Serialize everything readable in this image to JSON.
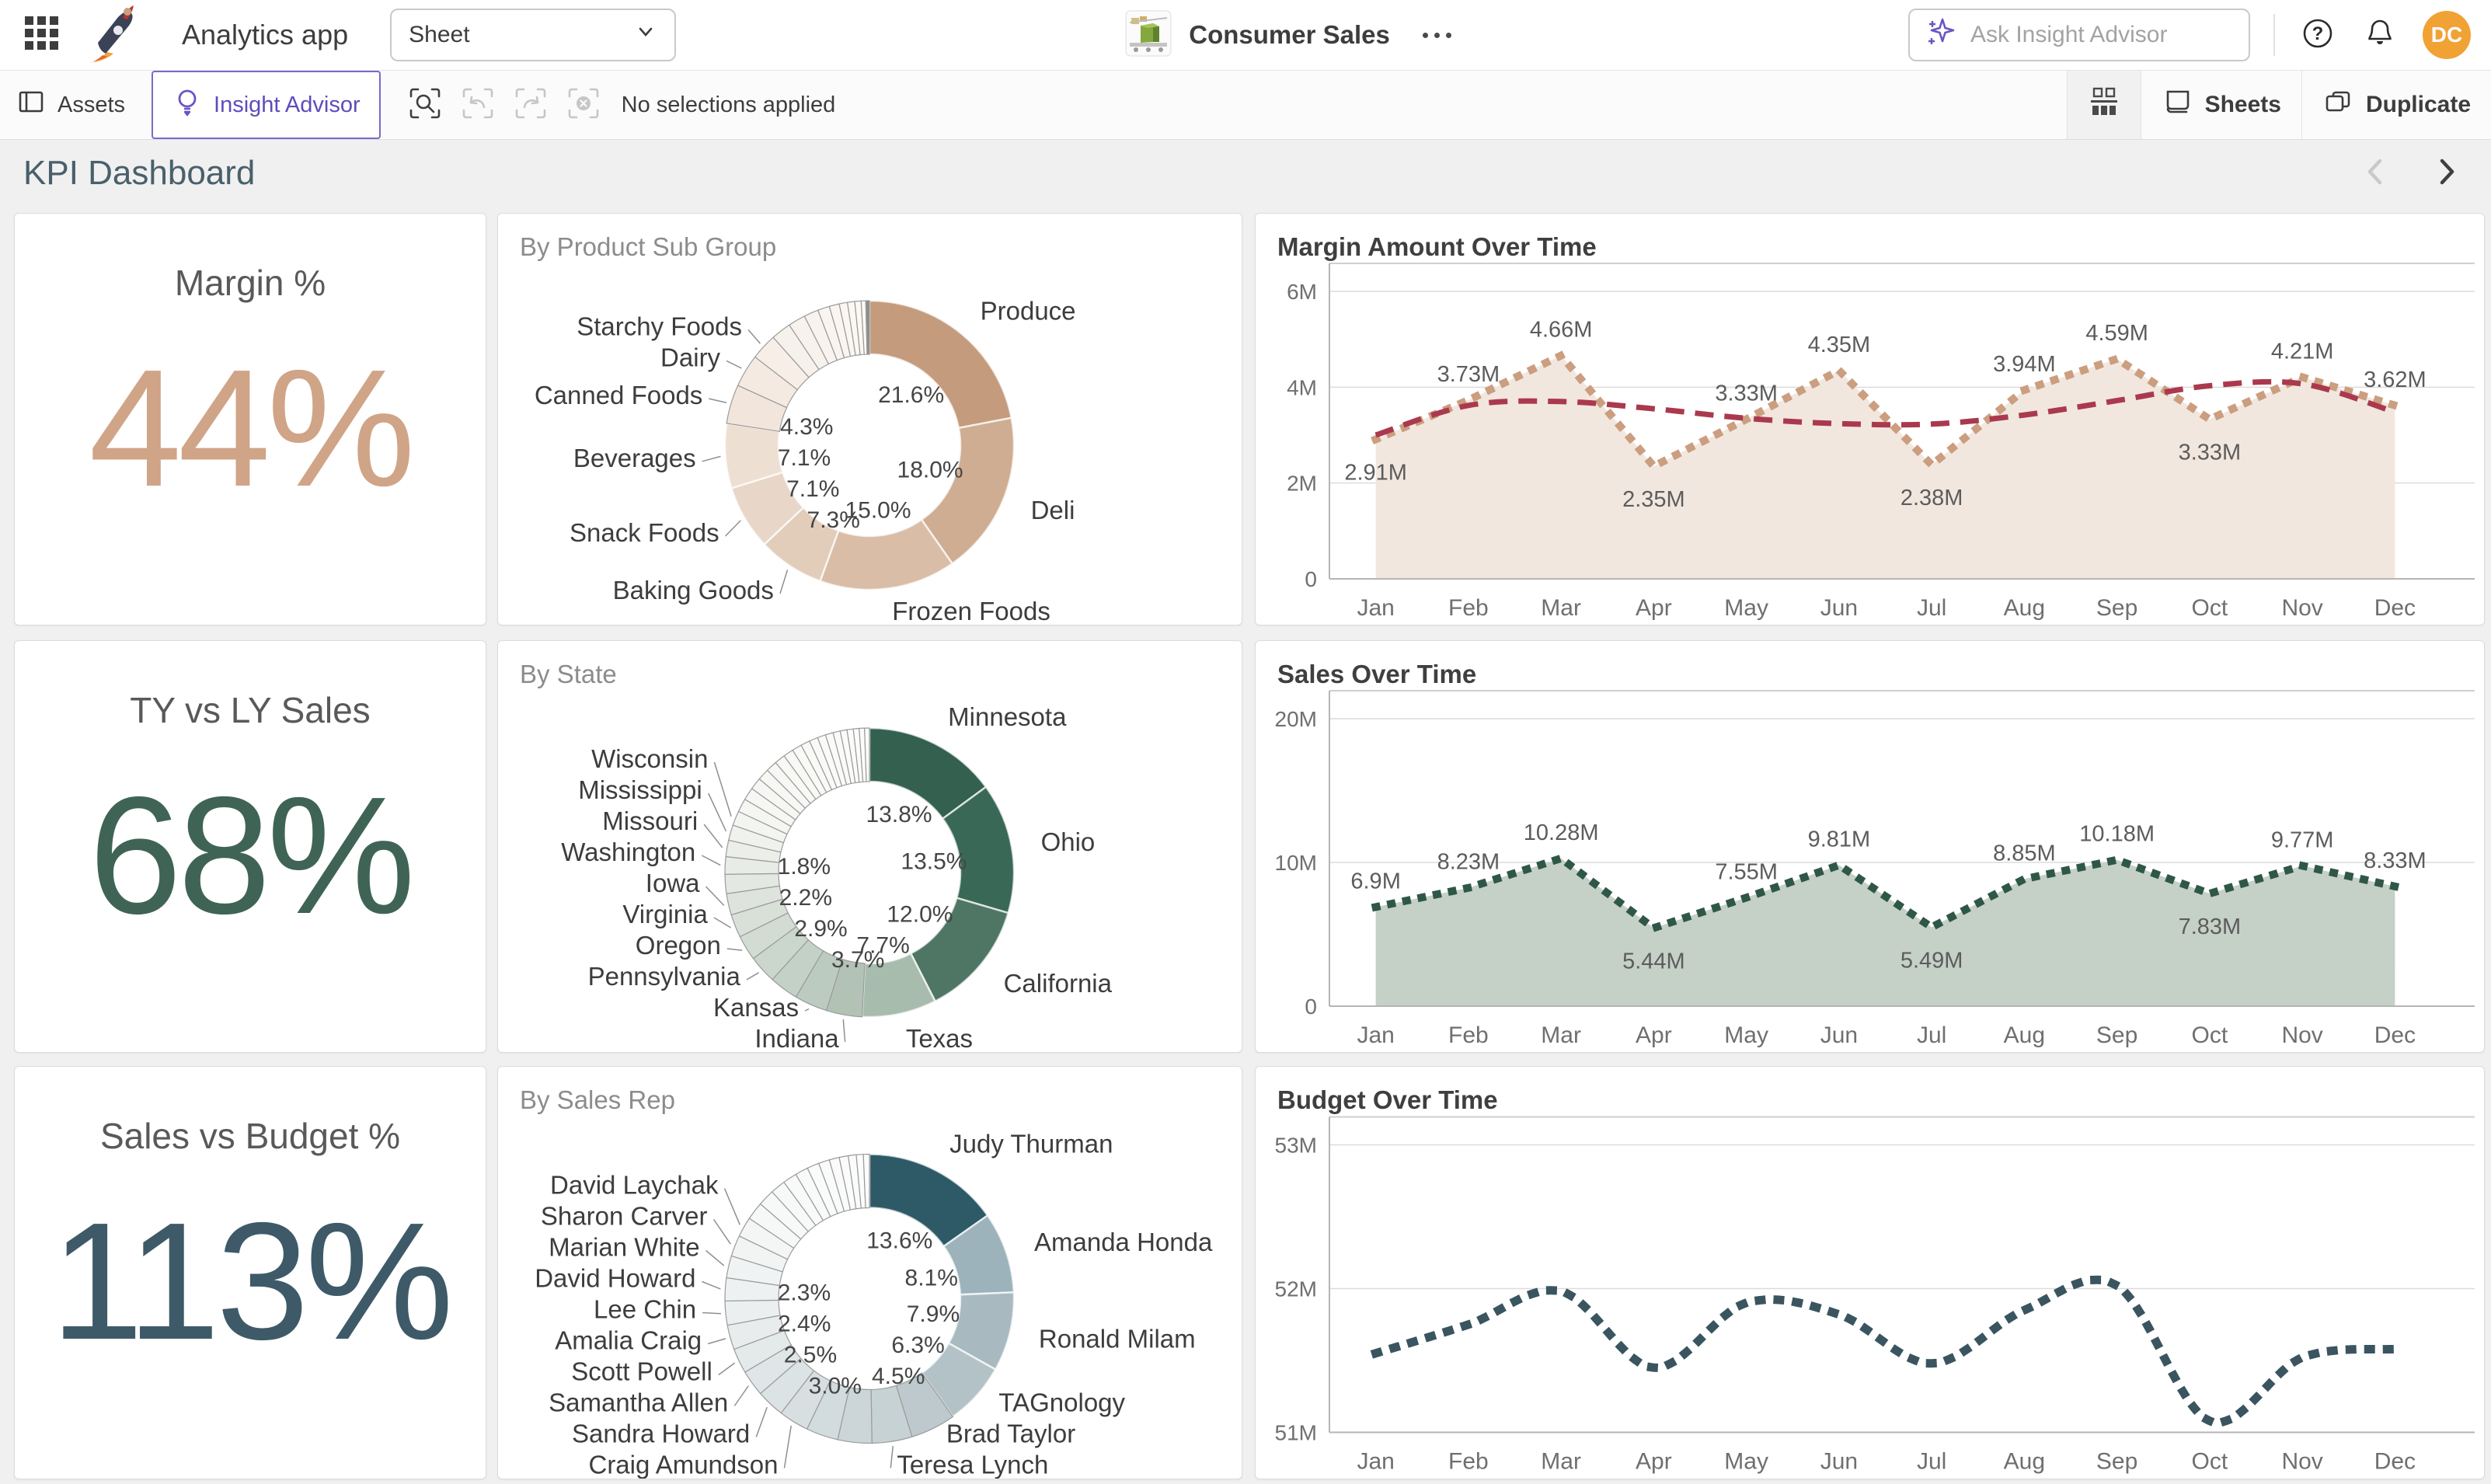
{
  "header": {
    "app_title": "Analytics app",
    "sheet_selector": "Sheet",
    "app_name": "Consumer Sales",
    "search_placeholder": "Ask Insight Advisor",
    "avatar_initials": "DC",
    "avatar_color": "#f0a235",
    "accent_color": "#6a54c5"
  },
  "toolbar": {
    "assets_label": "Assets",
    "insight_advisor_label": "Insight Advisor",
    "status_text": "No selections applied",
    "sheets_label": "Sheets",
    "duplicate_label": "Duplicate"
  },
  "page": {
    "title": "KPI Dashboard"
  },
  "kpis": [
    {
      "title": "Margin %",
      "value": "44%",
      "color": "#d0a487"
    },
    {
      "title": "TY vs LY Sales",
      "value": "68%",
      "color": "#3f6455"
    },
    {
      "title": "Sales vs Budget %",
      "value": "113%",
      "color": "#3e5a68"
    }
  ],
  "chart_data": [
    {
      "type": "pie",
      "title": "By Product Sub Group",
      "slices": [
        {
          "label": "Produce",
          "value": 21.6,
          "pct": "21.6%",
          "color": "#c49b7c"
        },
        {
          "label": "Deli",
          "value": 18.0,
          "pct": "18.0%",
          "color": "#cfad92"
        },
        {
          "label": "Frozen Foods",
          "value": 15.0,
          "pct": "15.0%",
          "color": "#d9bda6"
        },
        {
          "label": "Baking Goods",
          "value": 7.3,
          "pct": "7.3%",
          "color": "#e2ccba"
        },
        {
          "label": "Snack Foods",
          "value": 7.1,
          "pct": "7.1%",
          "color": "#e8d6c8"
        },
        {
          "label": "Beverages",
          "value": 7.1,
          "pct": "7.1%",
          "color": "#eedfd3"
        },
        {
          "label": "Canned Foods",
          "value": 4.3,
          "pct": "4.3%",
          "color": "#f2e6dc"
        },
        {
          "label": "Dairy",
          "value": 3.6,
          "color": "#f4eae1"
        },
        {
          "label": "Starchy Foods",
          "value": 2.9,
          "color": "#f6eee7"
        },
        {
          "label": "",
          "value": 2.2,
          "color": "#f7f1eb"
        },
        {
          "label": "",
          "value": 1.9,
          "color": "#f8f2ed"
        },
        {
          "label": "",
          "value": 1.6,
          "color": "#f8f3ee"
        },
        {
          "label": "",
          "value": 1.3,
          "color": "#f9f4ef"
        },
        {
          "label": "",
          "value": 1.1,
          "color": "#faf5f1"
        },
        {
          "label": "",
          "value": 0.9,
          "color": "#faf6f2"
        },
        {
          "label": "",
          "value": 0.8,
          "color": "#fbf7f3"
        },
        {
          "label": "",
          "value": 0.7,
          "color": "#fbf8f4"
        },
        {
          "label": "",
          "value": 0.5,
          "color": "#fcf9f5"
        },
        {
          "label": "",
          "value": 0.4,
          "color": "#8d8d8d"
        }
      ]
    },
    {
      "type": "area",
      "title": "Margin Amount Over Time",
      "x": [
        "Jan",
        "Feb",
        "Mar",
        "Apr",
        "May",
        "Jun",
        "Jul",
        "Aug",
        "Sep",
        "Oct",
        "Nov",
        "Dec"
      ],
      "values": [
        2.91,
        3.73,
        4.66,
        2.35,
        3.33,
        4.35,
        2.38,
        3.94,
        4.59,
        3.33,
        4.21,
        3.62
      ],
      "point_labels": [
        "2.91M",
        "3.73M",
        "4.66M",
        "2.35M",
        "3.33M",
        "4.35M",
        "2.38M",
        "3.94M",
        "4.59M",
        "3.33M",
        "4.21M",
        "3.62M"
      ],
      "label_side": [
        "b",
        "a",
        "a",
        "b",
        "a",
        "a",
        "b",
        "a",
        "a",
        "b",
        "a",
        "a"
      ],
      "ylim": [
        0,
        6
      ],
      "yticks": [
        {
          "v": 0,
          "label": "0"
        },
        {
          "v": 2,
          "label": "2M"
        },
        {
          "v": 4,
          "label": "4M"
        },
        {
          "v": 6,
          "label": "6M"
        }
      ],
      "line_color": "#cb9e80",
      "fill_color": "#f2e7df",
      "trend": {
        "color": "#ab394d",
        "values": [
          3.0,
          3.62,
          3.7,
          3.55,
          3.35,
          3.24,
          3.23,
          3.42,
          3.72,
          4.03,
          4.07,
          3.48
        ]
      }
    },
    {
      "type": "pie",
      "title": "By State",
      "slices": [
        {
          "label": "Minnesota",
          "value": 13.8,
          "pct": "13.8%",
          "color": "#33604f"
        },
        {
          "label": "Ohio",
          "value": 13.5,
          "pct": "13.5%",
          "color": "#3a6857"
        },
        {
          "label": "California",
          "value": 12.0,
          "pct": "12.0%",
          "color": "#4f7665"
        },
        {
          "label": "Texas",
          "value": 7.7,
          "pct": "7.7%",
          "color": "#a8bcae"
        },
        {
          "label": "Indiana",
          "value": 3.7,
          "pct": "3.7%",
          "color": "#b2c3b6"
        },
        {
          "label": "Kansas",
          "value": 3.4,
          "color": "#bccbbf"
        },
        {
          "label": "",
          "value": 3.0,
          "color": "#c4d1c7"
        },
        {
          "label": "Pennsylvania",
          "value": 2.9,
          "pct": "2.9%",
          "color": "#cbd6cd"
        },
        {
          "label": "Oregon",
          "value": 2.6,
          "color": "#d2dcd3"
        },
        {
          "label": "Virginia",
          "value": 2.4,
          "color": "#d8e0d8"
        },
        {
          "label": "Iowa",
          "value": 2.2,
          "pct": "2.2%",
          "color": "#dee4dd"
        },
        {
          "label": "",
          "value": 2.0,
          "color": "#e3e8e2"
        },
        {
          "label": "Washington",
          "value": 1.8,
          "pct": "1.8%",
          "color": "#e8ece6"
        },
        {
          "label": "Missouri",
          "value": 1.7,
          "color": "#ecefe9"
        },
        {
          "label": "Mississippi",
          "value": 1.6,
          "color": "#f0f2ed"
        },
        {
          "label": "Wisconsin",
          "value": 1.5,
          "color": "#f3f5f0"
        },
        {
          "label": "",
          "value": 1.4,
          "color": "#f5f6f2"
        },
        {
          "label": "",
          "value": 1.3,
          "color": "#f6f7f3"
        },
        {
          "label": "",
          "value": 1.25,
          "color": "#f6f7f4"
        },
        {
          "label": "",
          "value": 1.2,
          "color": "#f7f8f4"
        },
        {
          "label": "",
          "value": 1.15,
          "color": "#f7f8f5"
        },
        {
          "label": "",
          "value": 1.1,
          "color": "#f8f9f5"
        },
        {
          "label": "",
          "value": 1.05,
          "color": "#f8f9f6"
        },
        {
          "label": "",
          "value": 1.0,
          "color": "#f9f9f6"
        },
        {
          "label": "",
          "value": 0.95,
          "color": "#f9faf7"
        },
        {
          "label": "",
          "value": 0.9,
          "color": "#f9faf7"
        },
        {
          "label": "",
          "value": 0.85,
          "color": "#fafaf8"
        },
        {
          "label": "",
          "value": 0.8,
          "color": "#fafbf8"
        },
        {
          "label": "",
          "value": 0.75,
          "color": "#fafbf9"
        },
        {
          "label": "",
          "value": 0.7,
          "color": "#fbfbf9"
        },
        {
          "label": "",
          "value": 0.65,
          "color": "#fbfcfa"
        },
        {
          "label": "",
          "value": 0.6,
          "color": "#fbfcfa"
        },
        {
          "label": "",
          "value": 0.55,
          "color": "#fcfcfb"
        },
        {
          "label": "",
          "value": 0.5,
          "color": "#fcfcfb"
        }
      ]
    },
    {
      "type": "area",
      "title": "Sales Over Time",
      "x": [
        "Jan",
        "Feb",
        "Mar",
        "Apr",
        "May",
        "Jun",
        "Jul",
        "Aug",
        "Sep",
        "Oct",
        "Nov",
        "Dec"
      ],
      "values": [
        6.9,
        8.23,
        10.28,
        5.44,
        7.55,
        9.81,
        5.49,
        8.85,
        10.18,
        7.83,
        9.77,
        8.33
      ],
      "point_labels": [
        "6.9M",
        "8.23M",
        "10.28M",
        "5.44M",
        "7.55M",
        "9.81M",
        "5.49M",
        "8.85M",
        "10.18M",
        "7.83M",
        "9.77M",
        "8.33M"
      ],
      "label_side": [
        "a",
        "a",
        "a",
        "b",
        "a",
        "a",
        "b",
        "a",
        "a",
        "b",
        "a",
        "a"
      ],
      "ylim": [
        0,
        20
      ],
      "yticks": [
        {
          "v": 0,
          "label": "0"
        },
        {
          "v": 10,
          "label": "10M"
        },
        {
          "v": 20,
          "label": "20M"
        }
      ],
      "line_color": "#2f5747",
      "fill_color": "#c5d0c7"
    },
    {
      "type": "pie",
      "title": "By Sales Rep",
      "slices": [
        {
          "label": "Judy Thurman",
          "value": 13.6,
          "pct": "13.6%",
          "color": "#2d5a66"
        },
        {
          "label": "Amanda Honda",
          "value": 8.1,
          "pct": "8.1%",
          "color": "#9db3bb"
        },
        {
          "label": "Ronald Milam",
          "value": 7.9,
          "pct": "7.9%",
          "color": "#a8b9c0"
        },
        {
          "label": "TAGnology",
          "value": 6.3,
          "pct": "6.3%",
          "color": "#b3c2c7"
        },
        {
          "label": "Brad Taylor",
          "value": 4.5,
          "pct": "4.5%",
          "color": "#bdc9cd"
        },
        {
          "label": "Teresa Lynch",
          "value": 4.0,
          "color": "#c7d2d5"
        },
        {
          "label": "",
          "value": 3.4,
          "color": "#ccd6d9"
        },
        {
          "label": "",
          "value": 3.2,
          "color": "#d2dbdd"
        },
        {
          "label": "Craig Amundson",
          "value": 3.0,
          "pct": "3.0%",
          "color": "#d7dfe1"
        },
        {
          "label": "Sandra Howard",
          "value": 2.8,
          "color": "#dce3e4"
        },
        {
          "label": "Samantha Allen",
          "value": 2.6,
          "color": "#e0e6e7"
        },
        {
          "label": "Scott Powell",
          "value": 2.5,
          "pct": "2.5%",
          "color": "#e4e9ea"
        },
        {
          "label": "Amalia Craig",
          "value": 2.45,
          "color": "#e8eced"
        },
        {
          "label": "Lee Chin",
          "value": 2.4,
          "pct": "2.4%",
          "color": "#ebeff0"
        },
        {
          "label": "David Howard",
          "value": 2.3,
          "pct": "2.3%",
          "color": "#eef1f1"
        },
        {
          "label": "Marian White",
          "value": 2.2,
          "color": "#f0f3f3"
        },
        {
          "label": "Sharon Carver",
          "value": 2.1,
          "color": "#f2f4f4"
        },
        {
          "label": "David Laychak",
          "value": 2.0,
          "color": "#f4f6f5"
        },
        {
          "label": "",
          "value": 1.8,
          "color": "#f6f7f7"
        },
        {
          "label": "",
          "value": 1.65,
          "color": "#f7f8f8"
        },
        {
          "label": "",
          "value": 1.5,
          "color": "#f7f8f8"
        },
        {
          "label": "",
          "value": 1.4,
          "color": "#f8f9f9"
        },
        {
          "label": "",
          "value": 1.3,
          "color": "#f8f9f9"
        },
        {
          "label": "",
          "value": 1.2,
          "color": "#f9fafa"
        },
        {
          "label": "",
          "value": 1.1,
          "color": "#f9fafa"
        },
        {
          "label": "",
          "value": 1.0,
          "color": "#fafafa"
        },
        {
          "label": "",
          "value": 0.9,
          "color": "#fafbfb"
        },
        {
          "label": "",
          "value": 0.8,
          "color": "#fbfbfb"
        },
        {
          "label": "",
          "value": 0.7,
          "color": "#fbfcfc"
        },
        {
          "label": "",
          "value": 0.6,
          "color": "#fcfcfc"
        }
      ]
    },
    {
      "type": "line",
      "title": "Budget Over Time",
      "x": [
        "Jan",
        "Feb",
        "Mar",
        "Apr",
        "May",
        "Jun",
        "Jul",
        "Aug",
        "Sep",
        "Oct",
        "Nov",
        "Dec"
      ],
      "values": [
        51.55,
        51.75,
        51.98,
        51.45,
        51.9,
        51.82,
        51.48,
        51.85,
        52.02,
        51.08,
        51.52,
        51.58
      ],
      "ylim": [
        51,
        53
      ],
      "yticks": [
        {
          "v": 51,
          "label": "51M"
        },
        {
          "v": 52,
          "label": "52M"
        },
        {
          "v": 53,
          "label": "53M"
        }
      ],
      "line_color": "#3a5560",
      "smooth": true
    }
  ]
}
